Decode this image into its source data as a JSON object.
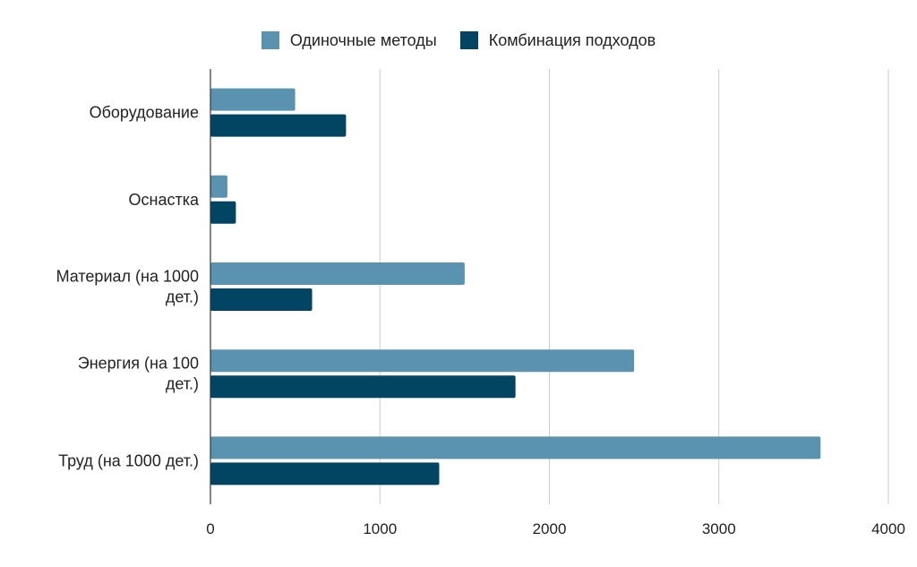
{
  "chart_data": {
    "type": "bar",
    "orientation": "horizontal",
    "categories": [
      [
        "Оборудование"
      ],
      [
        "Оснастка"
      ],
      [
        "Материал (на 1000",
        "дет.)"
      ],
      [
        "Энергия (на 100",
        "дет.)"
      ],
      [
        "Труд (на 1000 дет.)"
      ]
    ],
    "series": [
      {
        "name": "Одиночные методы",
        "color": "#5a93b0",
        "values": [
          500,
          100,
          1500,
          2500,
          3600
        ]
      },
      {
        "name": "Комбинация подходов",
        "color": "#014563",
        "values": [
          800,
          150,
          600,
          1800,
          1350
        ]
      }
    ],
    "xlim": [
      0,
      4000
    ],
    "xticks": [
      "0",
      "1000",
      "2000",
      "3000",
      "4000"
    ],
    "grid": "vertical",
    "legend_position": "top"
  }
}
